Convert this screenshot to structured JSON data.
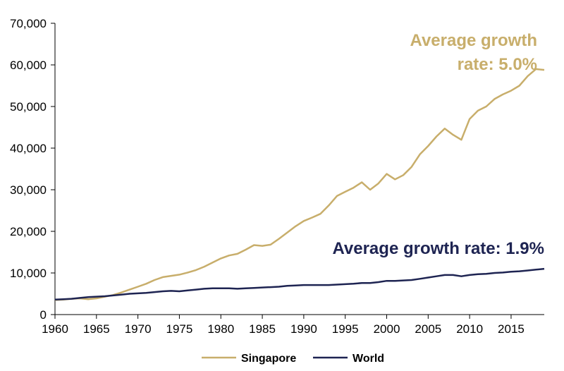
{
  "chart_data": {
    "type": "line",
    "title": "",
    "xlabel": "",
    "ylabel": "",
    "xlim": [
      1960,
      2019
    ],
    "ylim": [
      0,
      70000
    ],
    "grid": false,
    "legend": "bottom",
    "x_ticks": [
      1960,
      1965,
      1970,
      1975,
      1980,
      1985,
      1990,
      1995,
      2000,
      2005,
      2010,
      2015
    ],
    "x_tick_labels": [
      "1960",
      "1965",
      "1970",
      "1975",
      "1980",
      "1985",
      "1990",
      "1995",
      "2000",
      "2005",
      "2010",
      "2015"
    ],
    "y_ticks": [
      0,
      10000,
      20000,
      30000,
      40000,
      50000,
      60000,
      70000
    ],
    "y_tick_labels": [
      "0",
      "10,000",
      "20,000",
      "30,000",
      "40,000",
      "50,000",
      "60,000",
      "70,000"
    ],
    "x": [
      1960,
      1961,
      1962,
      1963,
      1964,
      1965,
      1966,
      1967,
      1968,
      1969,
      1970,
      1971,
      1972,
      1973,
      1974,
      1975,
      1976,
      1977,
      1978,
      1979,
      1980,
      1981,
      1982,
      1983,
      1984,
      1985,
      1986,
      1987,
      1988,
      1989,
      1990,
      1991,
      1992,
      1993,
      1994,
      1995,
      1996,
      1997,
      1998,
      1999,
      2000,
      2001,
      2002,
      2003,
      2004,
      2005,
      2006,
      2007,
      2008,
      2009,
      2010,
      2011,
      2012,
      2013,
      2014,
      2015,
      2016,
      2017,
      2018,
      2019
    ],
    "series": [
      {
        "name": "Singapore",
        "color": "#C8AE6B",
        "values": [
          3500,
          3600,
          3800,
          3900,
          3700,
          3900,
          4300,
          4700,
          5300,
          6000,
          6700,
          7400,
          8300,
          9000,
          9300,
          9600,
          10100,
          10700,
          11500,
          12500,
          13500,
          14200,
          14600,
          15600,
          16700,
          16500,
          16800,
          18200,
          19700,
          21200,
          22500,
          23300,
          24200,
          26200,
          28500,
          29500,
          30500,
          31800,
          30000,
          31500,
          33800,
          32500,
          33500,
          35500,
          38500,
          40500,
          42800,
          44700,
          43200,
          42000,
          47000,
          49000,
          50000,
          51800,
          52900,
          53800,
          55000,
          57300,
          59000,
          58800
        ]
      },
      {
        "name": "World",
        "color": "#1E2452",
        "values": [
          3600,
          3700,
          3800,
          4000,
          4200,
          4300,
          4400,
          4600,
          4800,
          5000,
          5100,
          5200,
          5400,
          5600,
          5700,
          5600,
          5800,
          6000,
          6200,
          6300,
          6300,
          6300,
          6200,
          6300,
          6400,
          6500,
          6600,
          6700,
          6900,
          7000,
          7100,
          7100,
          7100,
          7100,
          7200,
          7300,
          7400,
          7600,
          7600,
          7800,
          8100,
          8100,
          8200,
          8300,
          8600,
          8900,
          9200,
          9500,
          9500,
          9200,
          9500,
          9700,
          9800,
          10000,
          10100,
          10300,
          10400,
          10600,
          10800,
          11000
        ]
      }
    ],
    "annotations": [
      {
        "text_lines": [
          "Average growth",
          "rate: 5.0%"
        ],
        "series": "Singapore",
        "color": "#C8AE6B"
      },
      {
        "text_lines": [
          "Average growth rate: 1.9%"
        ],
        "series": "World",
        "color": "#1E2452"
      }
    ]
  }
}
